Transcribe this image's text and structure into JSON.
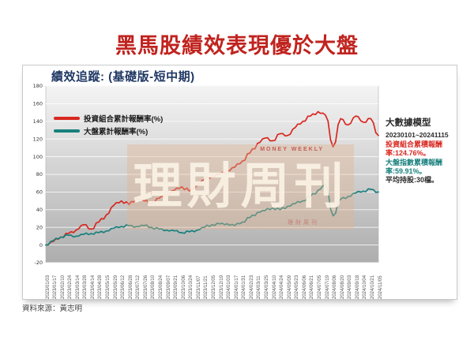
{
  "page": {
    "title": "黑馬股績效表現優於大盤",
    "source": "資料來源：黃志明"
  },
  "chart": {
    "title": "績效追蹤: (基礎版-短中期)",
    "legend": [
      {
        "label": "投資組合累計報酬率(%)",
        "color": "#d8271f"
      },
      {
        "label": "大盤累計報酬率(%)",
        "color": "#17807c"
      }
    ],
    "watermark": {
      "main": "理財周刊",
      "top": "MONEY WEEKLY",
      "bottom": "理財周刊"
    },
    "info_panel": {
      "heading": "大數據模型",
      "period": "20230101~20241115",
      "portfolio_return": "投資組合累積報酬率:124.76%。",
      "market_return": "大盤指數累積報酬率:59.91%。",
      "avg_holding": "平均持股:30檔。",
      "portfolio_color": "#d8271f",
      "market_color": "#17807c"
    }
  },
  "chart_data": {
    "type": "line",
    "title": "績效追蹤: (基礎版-短中期)",
    "ylim": [
      -20,
      180
    ],
    "yticks": [
      180,
      160,
      140,
      120,
      100,
      80,
      60,
      40,
      20,
      0,
      -20
    ],
    "grid": true,
    "legend_position": "top-left",
    "plot_bg_gradient": [
      "#f4f4f4",
      "#adadad"
    ],
    "x": [
      "2023/01/03",
      "2023/01/17",
      "2023/02/10",
      "2023/02/24",
      "2023/03/14",
      "2023/03/28",
      "2023/04/14",
      "2023/04/28",
      "2023/05/15",
      "2023/05/29",
      "2023/06/12",
      "2023/06/28",
      "2023/07/12",
      "2023/07/26",
      "2023/08/10",
      "2023/08/24",
      "2023/09/07",
      "2023/09/21",
      "2023/10/06",
      "2023/10/24",
      "2023/11/07",
      "2023/11/21",
      "2023/12/05",
      "2023/12/19",
      "2024/01/03",
      "2024/01/17",
      "2024/01/31",
      "2024/02/23",
      "2024/03/11",
      "2024/03/25",
      "2024/04/10",
      "2024/04/24",
      "2024/05/09",
      "2024/05/23",
      "2024/06/06",
      "2024/06/21",
      "2024/07/05",
      "2024/07/19",
      "2024/08/06",
      "2024/08/20",
      "2024/09/03",
      "2024/09/18",
      "2024/10/04",
      "2024/10/21",
      "2024/11/05"
    ],
    "series": [
      {
        "name": "投資組合累計報酬率(%)",
        "color": "#d8271f",
        "values": [
          0,
          4,
          9,
          13,
          17,
          23,
          18,
          26,
          34,
          45,
          50,
          46,
          53,
          50,
          47,
          53,
          57,
          62,
          66,
          61,
          68,
          74,
          78,
          80,
          84,
          88,
          95,
          104,
          115,
          121,
          118,
          126,
          124,
          133,
          140,
          146,
          151,
          147,
          111,
          143,
          136,
          146,
          139,
          143,
          124
        ]
      },
      {
        "name": "大盤累計報酬率(%)",
        "color": "#17807c",
        "values": [
          0,
          5,
          9,
          11,
          10,
          12,
          13,
          14,
          16,
          19,
          21,
          22,
          21,
          22,
          20,
          18,
          17,
          16,
          14,
          15,
          17,
          20,
          23,
          24,
          24,
          22,
          26,
          31,
          37,
          39,
          42,
          40,
          44,
          47,
          50,
          55,
          62,
          68,
          33,
          52,
          55,
          59,
          61,
          63,
          60
        ]
      }
    ]
  }
}
